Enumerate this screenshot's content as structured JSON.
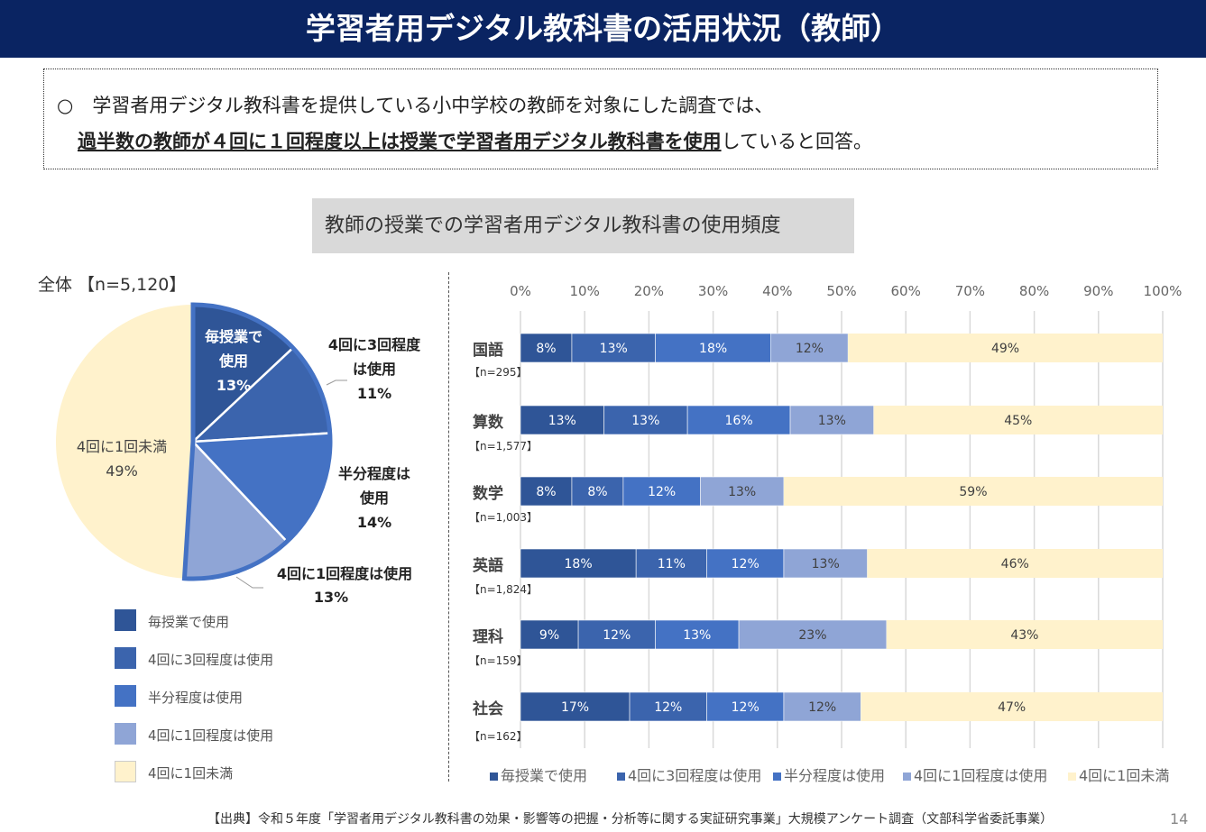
{
  "title": "学習者用デジタル教科書の活用状況（教師）",
  "note": {
    "line1": "○　学習者用デジタル教科書を提供している小中学校の教師を対象にした調査では、",
    "line2_emph": "過半数の教師が４回に１回程度以上は授業で学習者用デジタル教科書を使用",
    "line2_rest": "していると回答。"
  },
  "chart_title": "教師の授業での学習者用デジタル教科書の使用頻度",
  "categories_legend": [
    "毎授業で使用",
    "4回に3回程度は使用",
    "半分程度は使用",
    "4回に1回程度は使用",
    "4回に1回未満"
  ],
  "colors": [
    "#2f5597",
    "#3b64ad",
    "#4472c4",
    "#8fa5d6",
    "#fff2cc"
  ],
  "chart_data": [
    {
      "type": "pie",
      "title": "全体 【n=5,120】",
      "labels": [
        "毎授業で使用",
        "4回に3回程度は使用",
        "半分程度は使用",
        "4回に1回程度は使用",
        "4回に1回未満"
      ],
      "values": [
        13,
        11,
        14,
        13,
        49
      ],
      "data_labels": [
        {
          "name": "毎授業で使用",
          "value": "13%"
        },
        {
          "name": "4回に3回程度は使用",
          "value": "11%"
        },
        {
          "name": "半分程度は使用",
          "value": "14%"
        },
        {
          "name": "4回に1回程度は使用",
          "value": "13%"
        },
        {
          "name": "4回に1回未満",
          "value": "49%"
        }
      ],
      "legend": "bottom"
    },
    {
      "type": "bar",
      "stacked": true,
      "orientation": "horizontal",
      "xlim": [
        0,
        100
      ],
      "x_ticks": [
        "0%",
        "10%",
        "20%",
        "30%",
        "40%",
        "50%",
        "60%",
        "70%",
        "80%",
        "90%",
        "100%"
      ],
      "grid": true,
      "legend": "bottom",
      "categories": [
        {
          "subject": "国語",
          "n": "【n=295】"
        },
        {
          "subject": "算数",
          "n": "【n=1,577】"
        },
        {
          "subject": "数学",
          "n": "【n=1,003】"
        },
        {
          "subject": "英語",
          "n": "【n=1,824】"
        },
        {
          "subject": "理科",
          "n": "【n=159】"
        },
        {
          "subject": "社会",
          "n": "【n=162】"
        }
      ],
      "series": [
        {
          "name": "毎授業で使用",
          "values": [
            8,
            13,
            8,
            18,
            9,
            17
          ]
        },
        {
          "name": "4回に3回程度は使用",
          "values": [
            13,
            13,
            8,
            11,
            12,
            12
          ]
        },
        {
          "name": "半分程度は使用",
          "values": [
            18,
            16,
            12,
            12,
            13,
            12
          ]
        },
        {
          "name": "4回に1回程度は使用",
          "values": [
            12,
            13,
            13,
            13,
            23,
            12
          ]
        },
        {
          "name": "4回に1回未満",
          "values": [
            49,
            45,
            59,
            46,
            43,
            47
          ]
        }
      ]
    }
  ],
  "pie_labels": {
    "s0": [
      "毎授業で",
      "使用",
      "13%"
    ],
    "s1": [
      "4回に3回程度",
      "は使用",
      "11%"
    ],
    "s2": [
      "半分程度は",
      "使用",
      "14%"
    ],
    "s3": [
      "4回に1回程度は使用",
      "13%"
    ],
    "s4": [
      "4回に1回未満",
      "49%"
    ]
  },
  "overall_label": "全体 【n=5,120】",
  "source": "【出典】令和５年度「学習者用デジタル教科書の効果・影響等の把握・分析等に関する実証研究事業」大規模アンケート調査（文部科学省委託事業）",
  "page_number": "14"
}
